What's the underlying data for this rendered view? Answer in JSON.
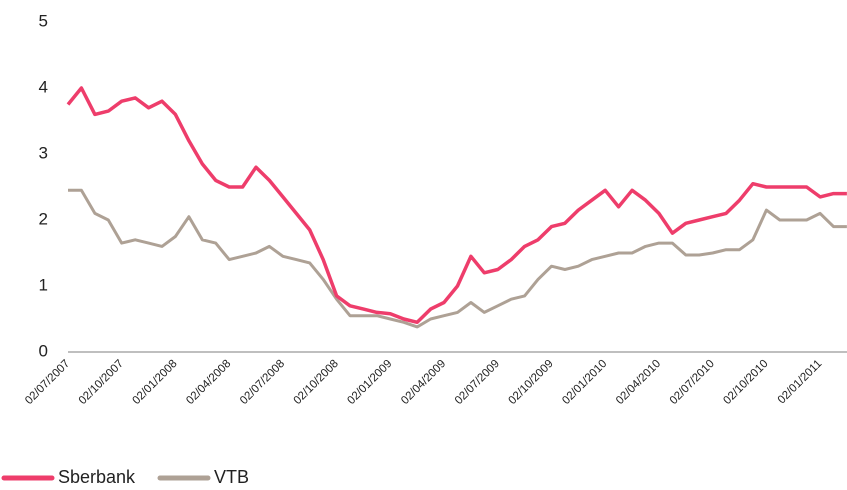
{
  "chart_data": {
    "type": "line",
    "categories": [
      "02/07/2007",
      null,
      null,
      null,
      "02/10/2007",
      null,
      null,
      null,
      "02/01/2008",
      null,
      null,
      null,
      "02/04/2008",
      null,
      null,
      null,
      "02/07/2008",
      null,
      null,
      null,
      "02/10/2008",
      null,
      null,
      null,
      "02/01/2009",
      null,
      null,
      null,
      "02/04/2009",
      null,
      null,
      null,
      "02/07/2009",
      null,
      null,
      null,
      "02/10/2009",
      null,
      null,
      null,
      "02/01/2010",
      null,
      null,
      null,
      "02/04/2010",
      null,
      null,
      null,
      "02/07/2010",
      null,
      null,
      null,
      "02/10/2010",
      null,
      null,
      null,
      "02/01/2011",
      null,
      null
    ],
    "series": [
      {
        "name": "Sberbank",
        "color": "#ee3d6b",
        "values": [
          3.75,
          4.0,
          3.6,
          3.65,
          3.8,
          3.85,
          3.7,
          3.8,
          3.6,
          3.2,
          2.85,
          2.6,
          2.5,
          2.5,
          2.8,
          2.6,
          2.35,
          2.1,
          1.85,
          1.4,
          0.85,
          0.7,
          0.65,
          0.6,
          0.58,
          0.5,
          0.45,
          0.65,
          0.75,
          1.0,
          1.45,
          1.2,
          1.25,
          1.4,
          1.6,
          1.7,
          1.9,
          1.95,
          2.15,
          2.3,
          2.45,
          2.2,
          2.45,
          2.3,
          2.1,
          1.8,
          1.95,
          2.0,
          2.05,
          2.1,
          2.3,
          2.55,
          2.5,
          2.5,
          2.5,
          2.5,
          2.35,
          2.4,
          2.4
        ]
      },
      {
        "name": "VTB",
        "color": "#aea195",
        "values": [
          2.45,
          2.45,
          2.1,
          2.0,
          1.65,
          1.7,
          1.65,
          1.6,
          1.75,
          2.05,
          1.7,
          1.65,
          1.4,
          1.45,
          1.5,
          1.6,
          1.45,
          1.4,
          1.35,
          1.1,
          0.8,
          0.55,
          0.55,
          0.55,
          0.5,
          0.45,
          0.38,
          0.5,
          0.55,
          0.6,
          0.75,
          0.6,
          0.7,
          0.8,
          0.85,
          1.1,
          1.3,
          1.25,
          1.3,
          1.4,
          1.45,
          1.5,
          1.5,
          1.6,
          1.65,
          1.65,
          1.47,
          1.47,
          1.5,
          1.55,
          1.55,
          1.7,
          2.15,
          2.0,
          2.0,
          2.0,
          2.1,
          1.9,
          1.9
        ]
      }
    ],
    "ylim": [
      0,
      5
    ],
    "yticks": [
      0,
      1,
      2,
      3,
      4,
      5
    ],
    "grid": false,
    "legend": "bottom-left"
  }
}
